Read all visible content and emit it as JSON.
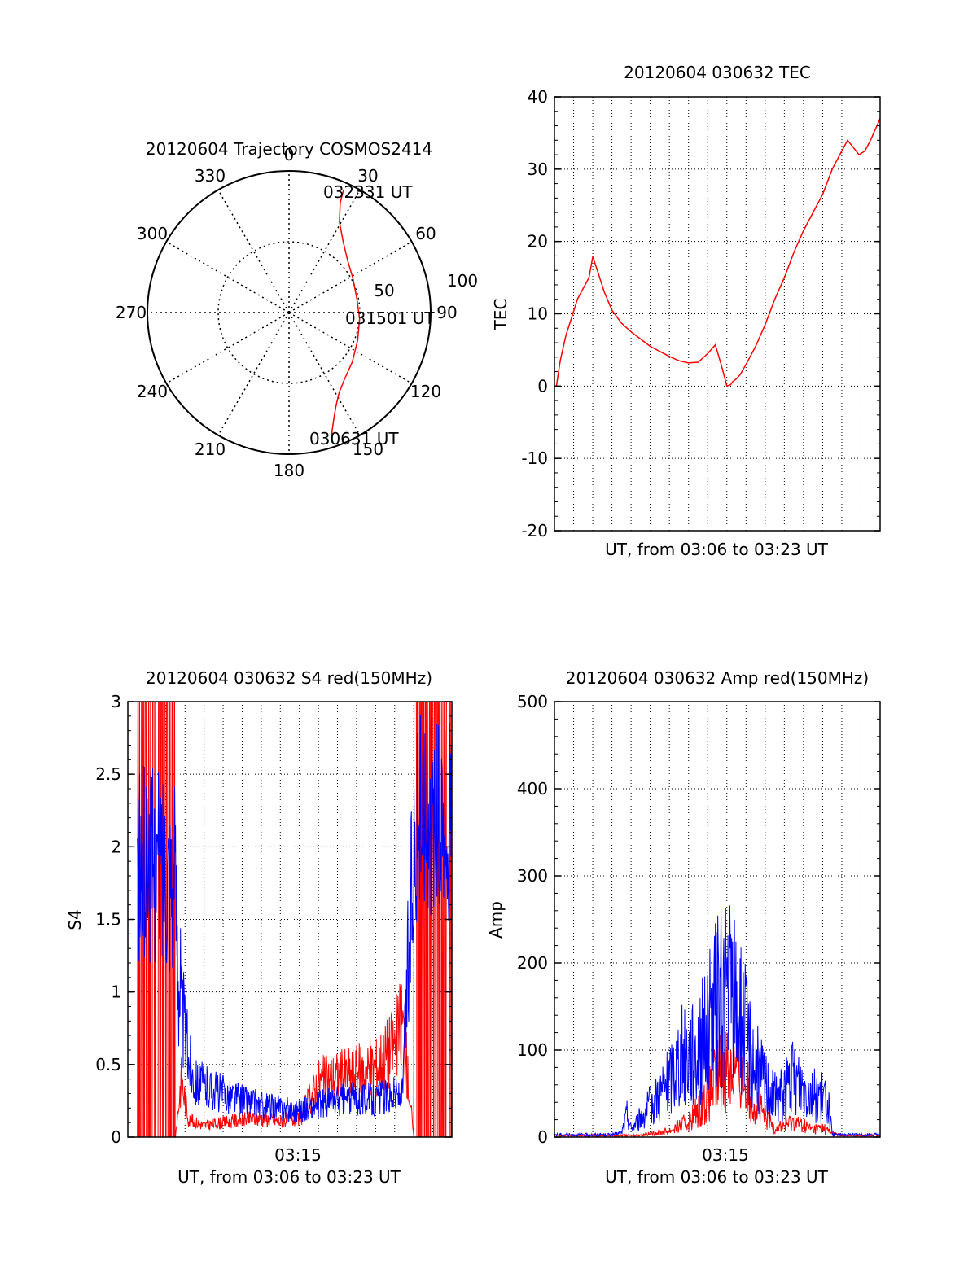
{
  "chart_data": [
    {
      "type": "polar",
      "title": "20120604 Trajectory COSMOS2414",
      "azimuth_labels": [
        "0",
        "30",
        "60",
        "90",
        "120",
        "150",
        "180",
        "210",
        "240",
        "270",
        "300",
        "330"
      ],
      "radial_labels": [
        "50",
        "100"
      ],
      "series": [
        {
          "color": "#ff0000",
          "azimuth_deg": [
            162,
            160,
            157,
            153,
            148,
            140,
            128,
            112,
            95,
            78,
            62,
            48,
            37,
            29,
            25,
            24
          ],
          "elevation_deg": [
            3,
            10,
            17,
            24,
            30,
            35,
            39,
            43,
            45,
            46,
            44,
            40,
            33,
            24,
            13,
            5
          ]
        }
      ],
      "annotations": [
        "030631 UT",
        "031501 UT",
        "032331 UT"
      ]
    },
    {
      "type": "line",
      "title": "20120604 030632 TEC",
      "xlabel": "UT, from 03:06 to 03:23 UT",
      "ylabel": "TEC",
      "xlim": [
        0,
        17
      ],
      "ylim": [
        -20,
        40
      ],
      "yticks": [
        "40",
        "30",
        "20",
        "10",
        "0",
        "-10",
        "-20"
      ],
      "grid": true,
      "series": [
        {
          "color": "#ff0000",
          "x": [
            0.1,
            0.3,
            0.6,
            0.9,
            1.2,
            1.5,
            1.8,
            2.0,
            2.3,
            2.6,
            3.0,
            3.5,
            4.0,
            4.5,
            5.0,
            5.5,
            6.0,
            6.5,
            7.0,
            7.5,
            8.0,
            8.4,
            8.7,
            9.0,
            9.2,
            9.3,
            9.5,
            9.7,
            10.0,
            10.5,
            11.0,
            11.5,
            12.0,
            12.5,
            13.0,
            13.5,
            14.0,
            14.5,
            15.0,
            15.3,
            15.6,
            15.9,
            16.2,
            16.5,
            17.0
          ],
          "y": [
            0.0,
            3.5,
            7.0,
            9.5,
            12.0,
            13.5,
            15.0,
            17.9,
            15.5,
            13.0,
            10.5,
            8.7,
            7.5,
            6.5,
            5.5,
            4.8,
            4.1,
            3.5,
            3.2,
            3.3,
            4.5,
            5.7,
            3.0,
            0.0,
            0.2,
            0.6,
            1.0,
            1.6,
            3.0,
            5.5,
            8.5,
            12.0,
            15.0,
            18.5,
            21.5,
            24.0,
            26.5,
            30.0,
            32.5,
            34.0,
            33.0,
            32.0,
            32.5,
            34.0,
            37.0
          ]
        }
      ]
    },
    {
      "type": "line",
      "title": "20120604 030632 S4 red(150MHz)",
      "xlabel": "UT, from 03:06 to 03:23 UT",
      "ylabel": "S4",
      "xlim": [
        0,
        17
      ],
      "ylim": [
        0,
        3
      ],
      "yticks": [
        "0",
        "0.5",
        "1",
        "1.5",
        "2",
        "2.5",
        "3"
      ],
      "xticks": [
        "03:15"
      ],
      "grid": true,
      "series": [
        {
          "color": "#ff0000",
          "x": [
            0.5,
            1.5,
            2.5,
            2.8,
            3.2,
            4.0,
            5.0,
            6.0,
            7.0,
            8.0,
            8.5,
            9.0,
            10.0,
            11.0,
            12.0,
            13.0,
            14.0,
            14.4,
            15.0,
            15.5,
            16.0,
            16.5,
            17.0
          ],
          "y": [
            0.0,
            0.0,
            0.0,
            0.4,
            0.12,
            0.08,
            0.1,
            0.12,
            0.13,
            0.11,
            0.12,
            0.12,
            0.38,
            0.42,
            0.45,
            0.48,
            0.65,
            0.8,
            0.0,
            0.0,
            0.0,
            0.0,
            0.0
          ]
        },
        {
          "color": "#0000ff",
          "x": [
            0.5,
            1.0,
            1.5,
            2.0,
            2.5,
            2.8,
            3.2,
            3.5,
            4.0,
            5.0,
            6.0,
            7.0,
            8.0,
            9.0,
            10.0,
            11.0,
            12.0,
            13.0,
            14.0,
            14.4,
            15.0,
            15.5,
            16.0,
            16.5,
            17.0
          ],
          "y": [
            1.8,
            1.9,
            1.85,
            1.9,
            1.75,
            0.9,
            0.55,
            0.4,
            0.35,
            0.3,
            0.26,
            0.22,
            0.2,
            0.18,
            0.22,
            0.25,
            0.27,
            0.26,
            0.3,
            0.28,
            2.0,
            2.3,
            2.2,
            2.1,
            2.2
          ]
        }
      ]
    },
    {
      "type": "line",
      "title": "20120604 030632 Amp red(150MHz)",
      "xlabel": "UT, from 03:06 to 03:23 UT",
      "ylabel": "Amp",
      "xlim": [
        0,
        17
      ],
      "ylim": [
        0,
        500
      ],
      "yticks": [
        "0",
        "100",
        "200",
        "300",
        "400",
        "500"
      ],
      "xticks": [
        "03:15"
      ],
      "grid": true,
      "series": [
        {
          "color": "#ff0000",
          "x": [
            0,
            3.0,
            4.0,
            5.0,
            6.0,
            7.0,
            8.0,
            8.6,
            9.0,
            9.5,
            10.0,
            10.5,
            11.0,
            11.5,
            12.0,
            12.5,
            13.0,
            13.5,
            14.0,
            14.5,
            15.0,
            17.0
          ],
          "y": [
            2,
            2,
            2,
            4,
            8,
            20,
            50,
            80,
            95,
            85,
            65,
            45,
            25,
            12,
            15,
            20,
            15,
            10,
            12,
            5,
            2,
            2
          ]
        },
        {
          "color": "#0000ff",
          "x": [
            0,
            3.0,
            3.5,
            3.8,
            4.0,
            5.0,
            6.0,
            6.5,
            7.0,
            7.5,
            8.0,
            8.5,
            9.0,
            9.5,
            10.0,
            10.5,
            11.0,
            11.5,
            12.0,
            12.5,
            13.0,
            13.5,
            14.0,
            14.3,
            14.5,
            15.0,
            17.0
          ],
          "y": [
            3,
            3,
            5,
            30,
            10,
            40,
            70,
            100,
            105,
            110,
            140,
            170,
            190,
            170,
            130,
            90,
            70,
            50,
            60,
            75,
            65,
            55,
            50,
            40,
            3,
            3,
            3
          ]
        }
      ]
    }
  ]
}
